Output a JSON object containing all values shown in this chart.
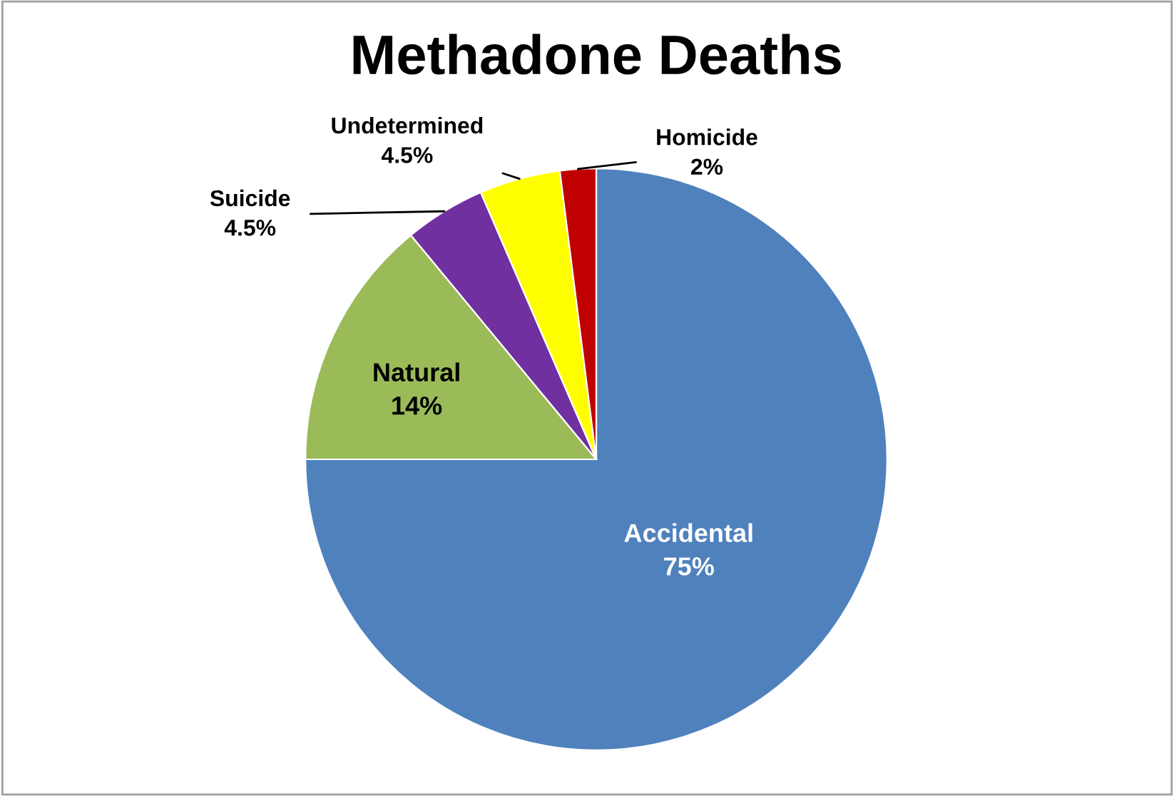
{
  "chart_data": {
    "type": "pie",
    "title": "Methadone Deaths",
    "categories": [
      "Accidental",
      "Natural",
      "Suicide",
      "Undetermined",
      "Homicide"
    ],
    "values": [
      75,
      14,
      4.5,
      4.5,
      2
    ],
    "value_labels": [
      "75%",
      "14%",
      "4.5%",
      "4.5%",
      "2%"
    ],
    "colors": [
      "#4f81bd",
      "#9bbb59",
      "#7030a0",
      "#ffff00",
      "#c00000"
    ],
    "legend": false
  }
}
